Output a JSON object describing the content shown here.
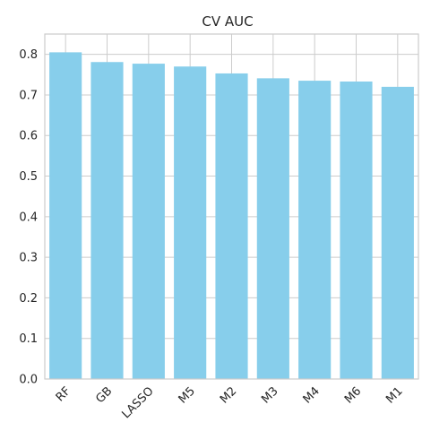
{
  "chart_data": {
    "type": "bar",
    "title": "CV AUC",
    "xlabel": "",
    "ylabel": "",
    "categories": [
      "RF",
      "GB",
      "LASSO",
      "M5",
      "M2",
      "M3",
      "M4",
      "M6",
      "M1"
    ],
    "values": [
      0.805,
      0.781,
      0.777,
      0.77,
      0.753,
      0.741,
      0.735,
      0.733,
      0.72
    ],
    "ylim": [
      0,
      0.85
    ],
    "yticks": [
      "0.0",
      "0.1",
      "0.2",
      "0.3",
      "0.4",
      "0.5",
      "0.6",
      "0.7",
      "0.8"
    ],
    "grid": true,
    "bar_color": "#87ceeb",
    "grid_color": "#cccccc"
  }
}
